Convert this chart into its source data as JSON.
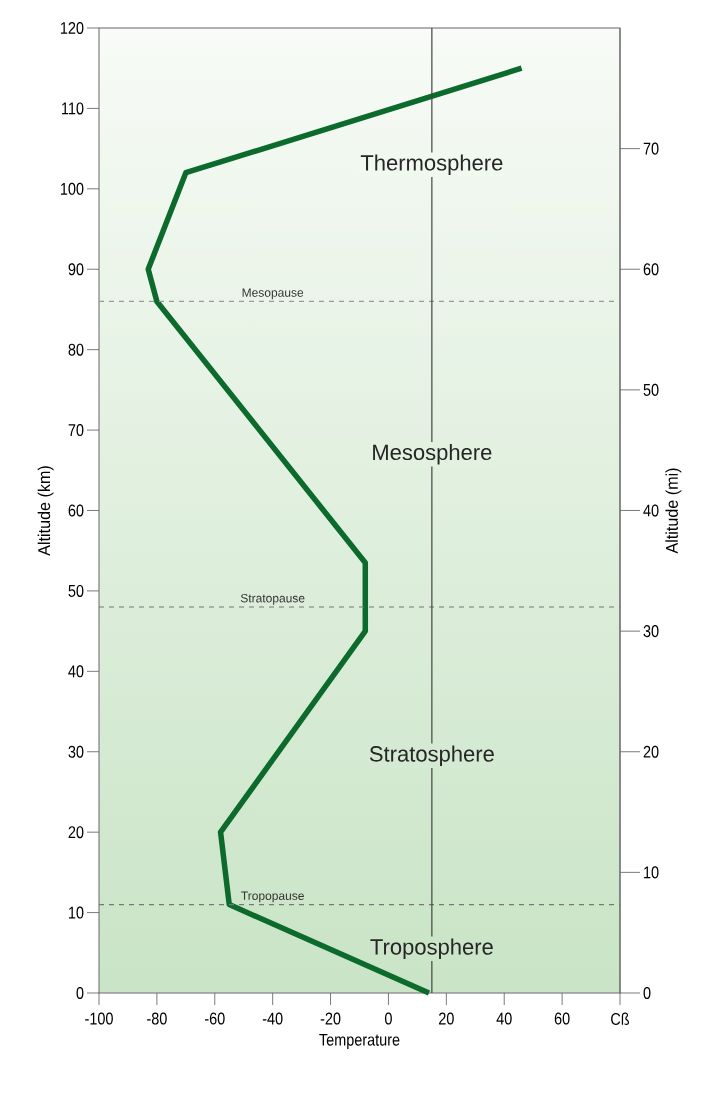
{
  "chart_data": {
    "type": "line",
    "xlabel": "Temperature",
    "ylabel": "Altitude (km)",
    "y2label": "Altitude (mi)",
    "series": [
      {
        "color": "#0b6a2c",
        "x": [
          14,
          -55,
          -58,
          -8,
          -8,
          -80,
          -83,
          -70,
          46
        ],
        "values": [
          0,
          11,
          20,
          45,
          53.5,
          86,
          90,
          102,
          115
        ]
      }
    ],
    "xlim": [
      -100,
      80
    ],
    "xticks": [
      -100,
      -80,
      -60,
      -40,
      -20,
      0,
      20,
      40,
      60,
      {
        "value": 80,
        "label": "Cß"
      }
    ],
    "ylim": [
      0,
      120
    ],
    "yticks": [
      0,
      10,
      20,
      30,
      40,
      50,
      60,
      70,
      80,
      90,
      100,
      110,
      120
    ],
    "y2lim": [
      0,
      80
    ],
    "y2ticks": [
      0,
      10,
      20,
      30,
      40,
      50,
      60,
      70
    ],
    "marker": "none",
    "line_style": "solid",
    "ref_lines": [
      {
        "axis": "y",
        "value": 86,
        "label": "Mesopause",
        "color": "#9a9a9a",
        "line_style": "dashed"
      },
      {
        "axis": "y",
        "value": 48,
        "label": "Stratopause",
        "color": "#777777",
        "line_style": "dashed"
      },
      {
        "axis": "y",
        "value": 11,
        "label": "Tropopause",
        "color": "#777777",
        "line_style": "dashed"
      },
      {
        "axis": "x",
        "value": 15,
        "color": "#444444",
        "line_style": "solid"
      }
    ],
    "annotations": [
      "Thermosphere",
      "Mesosphere",
      "Stratosphere",
      "Troposphere"
    ]
  }
}
